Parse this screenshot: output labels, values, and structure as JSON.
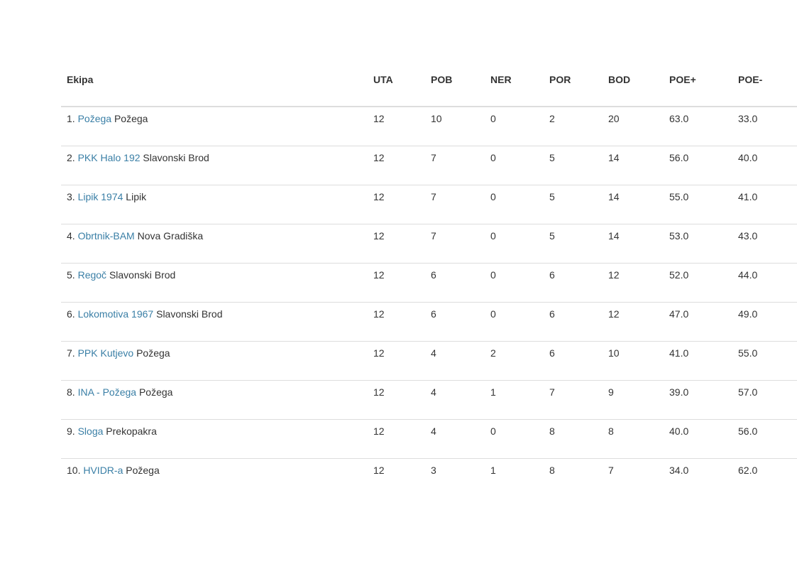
{
  "table": {
    "headers": {
      "team": "Ekipa",
      "uta": "UTA",
      "pob": "POB",
      "ner": "NER",
      "por": "POR",
      "bod": "BOD",
      "poe_plus": "POE+",
      "poe_minus": "POE-"
    },
    "rows": [
      {
        "rank": "1.",
        "team": "Požega",
        "city": "Požega",
        "uta": "12",
        "pob": "10",
        "ner": "0",
        "por": "2",
        "bod": "20",
        "poe_plus": "63.0",
        "poe_minus": "33.0"
      },
      {
        "rank": "2.",
        "team": "PKK Halo 192",
        "city": "Slavonski Brod",
        "uta": "12",
        "pob": "7",
        "ner": "0",
        "por": "5",
        "bod": "14",
        "poe_plus": "56.0",
        "poe_minus": "40.0"
      },
      {
        "rank": "3.",
        "team": "Lipik 1974",
        "city": "Lipik",
        "uta": "12",
        "pob": "7",
        "ner": "0",
        "por": "5",
        "bod": "14",
        "poe_plus": "55.0",
        "poe_minus": "41.0"
      },
      {
        "rank": "4.",
        "team": "Obrtnik-BAM",
        "city": "Nova Gradiška",
        "uta": "12",
        "pob": "7",
        "ner": "0",
        "por": "5",
        "bod": "14",
        "poe_plus": "53.0",
        "poe_minus": "43.0"
      },
      {
        "rank": "5.",
        "team": "Regoč",
        "city": "Slavonski Brod",
        "uta": "12",
        "pob": "6",
        "ner": "0",
        "por": "6",
        "bod": "12",
        "poe_plus": "52.0",
        "poe_minus": "44.0"
      },
      {
        "rank": "6.",
        "team": "Lokomotiva 1967",
        "city": "Slavonski Brod",
        "uta": "12",
        "pob": "6",
        "ner": "0",
        "por": "6",
        "bod": "12",
        "poe_plus": "47.0",
        "poe_minus": "49.0"
      },
      {
        "rank": "7.",
        "team": "PPK Kutjevo",
        "city": "Požega",
        "uta": "12",
        "pob": "4",
        "ner": "2",
        "por": "6",
        "bod": "10",
        "poe_plus": "41.0",
        "poe_minus": "55.0"
      },
      {
        "rank": "8.",
        "team": "INA - Požega",
        "city": "Požega",
        "uta": "12",
        "pob": "4",
        "ner": "1",
        "por": "7",
        "bod": "9",
        "poe_plus": "39.0",
        "poe_minus": "57.0"
      },
      {
        "rank": "9.",
        "team": "Sloga",
        "city": "Prekopakra",
        "uta": "12",
        "pob": "4",
        "ner": "0",
        "por": "8",
        "bod": "8",
        "poe_plus": "40.0",
        "poe_minus": "56.0"
      },
      {
        "rank": "10.",
        "team": "HVIDR-a",
        "city": "Požega",
        "uta": "12",
        "pob": "3",
        "ner": "1",
        "por": "8",
        "bod": "7",
        "poe_plus": "34.0",
        "poe_minus": "62.0"
      }
    ]
  },
  "colors": {
    "link": "#3a7fa6",
    "text": "#333333",
    "border": "#dddddd"
  }
}
